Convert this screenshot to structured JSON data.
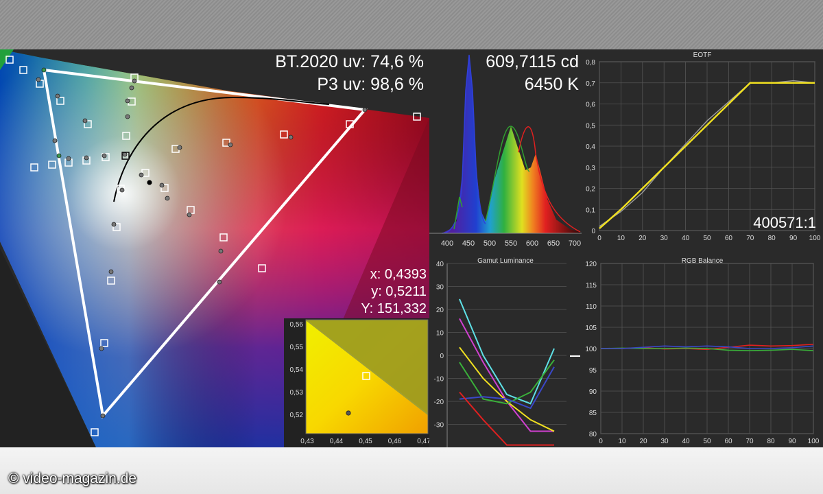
{
  "watermark": "© video-magazin.de",
  "cie": {
    "bt2020_text": "BT.2020 uv: 74,6 %",
    "p3_text": "P3 uv: 98,6 %",
    "readout_x": "x: 0,4393",
    "readout_y": "y: 0,5211",
    "readout_Y": "Y: 151,332"
  },
  "zoom_inset": {
    "x_ticks": [
      "0,43",
      "0,44",
      "0,45",
      "0,46",
      "0,47"
    ],
    "y_ticks": [
      "0,56",
      "0,55",
      "0,54",
      "0,53",
      "0,52"
    ]
  },
  "spectrum": {
    "luminance": "609,7115 cd",
    "cct": "6450 K",
    "x_ticks": [
      "400",
      "450",
      "500",
      "550",
      "600",
      "650",
      "700"
    ]
  },
  "eotf": {
    "title": "EOTF",
    "contrast": "400571:1",
    "x_ticks": [
      "0",
      "10",
      "20",
      "30",
      "40",
      "50",
      "60",
      "70",
      "80",
      "90",
      "100"
    ],
    "y_ticks": [
      "0",
      "0,1",
      "0,2",
      "0,3",
      "0,4",
      "0,5",
      "0,6",
      "0,7",
      "0,8"
    ]
  },
  "gamut_luminance": {
    "title": "Gamut Luminance",
    "y_ticks": [
      "40",
      "30",
      "20",
      "10",
      "0",
      "-10",
      "-20",
      "-30"
    ]
  },
  "rgb_balance": {
    "title": "RGB Balance",
    "x_ticks": [
      "0",
      "10",
      "20",
      "30",
      "40",
      "50",
      "60",
      "70",
      "80",
      "90",
      "100"
    ],
    "y_ticks": [
      "120",
      "115",
      "110",
      "105",
      "100",
      "95",
      "90",
      "85",
      "80"
    ]
  },
  "chart_data": [
    {
      "type": "line",
      "title": "EOTF",
      "xlim": [
        0,
        100
      ],
      "ylim": [
        0,
        0.8
      ],
      "series": [
        {
          "color": "#f0e020",
          "x": [
            0,
            10,
            20,
            30,
            40,
            50,
            60,
            70,
            80,
            90,
            100
          ],
          "y": [
            0.01,
            0.1,
            0.2,
            0.3,
            0.4,
            0.5,
            0.6,
            0.7,
            0.7,
            0.7,
            0.7
          ]
        },
        {
          "color": "#9a9a9a",
          "x": [
            0,
            10,
            20,
            30,
            40,
            50,
            60,
            70,
            80,
            90,
            100
          ],
          "y": [
            0.02,
            0.09,
            0.18,
            0.3,
            0.41,
            0.52,
            0.61,
            0.7,
            0.7,
            0.71,
            0.7
          ]
        }
      ]
    },
    {
      "type": "line",
      "title": "Gamut Luminance",
      "ylim": [
        -40,
        40
      ],
      "series": [
        {
          "color": "#5ee0e6",
          "values": [
            24.5,
            0,
            -17,
            -21,
            3
          ]
        },
        {
          "color": "#d040d0",
          "values": [
            16,
            -3,
            -20,
            -33,
            -33
          ]
        },
        {
          "color": "#f0e020",
          "values": [
            3.5,
            -10,
            -20,
            -28,
            -33
          ]
        },
        {
          "color": "#3ab03a",
          "values": [
            -3,
            -19,
            -21,
            -16,
            -2
          ]
        },
        {
          "color": "#3a48c8",
          "values": [
            -19,
            -18,
            -19,
            -23,
            -5
          ]
        },
        {
          "color": "#e02020",
          "values": [
            -16,
            -28,
            -39,
            -39,
            -39
          ]
        }
      ]
    },
    {
      "type": "line",
      "title": "RGB Balance",
      "xlim": [
        0,
        100
      ],
      "ylim": [
        80,
        120
      ],
      "series": [
        {
          "color": "#e02020",
          "x": [
            0,
            10,
            20,
            30,
            40,
            50,
            60,
            70,
            80,
            90,
            100
          ],
          "y": [
            100,
            100,
            100.2,
            99.9,
            100,
            99.8,
            100.3,
            100.8,
            100.6,
            100.7,
            101
          ]
        },
        {
          "color": "#3ab03a",
          "x": [
            0,
            10,
            20,
            30,
            40,
            50,
            60,
            70,
            80,
            90,
            100
          ],
          "y": [
            100,
            100.1,
            100,
            100,
            100.1,
            100,
            99.6,
            99.5,
            99.6,
            99.8,
            99.5
          ]
        },
        {
          "color": "#3a48c8",
          "x": [
            0,
            10,
            20,
            30,
            40,
            50,
            60,
            70,
            80,
            90,
            100
          ],
          "y": [
            100,
            100,
            100.3,
            100.6,
            100.4,
            100.6,
            100.4,
            100,
            100,
            100.2,
            100.6
          ]
        }
      ]
    }
  ]
}
